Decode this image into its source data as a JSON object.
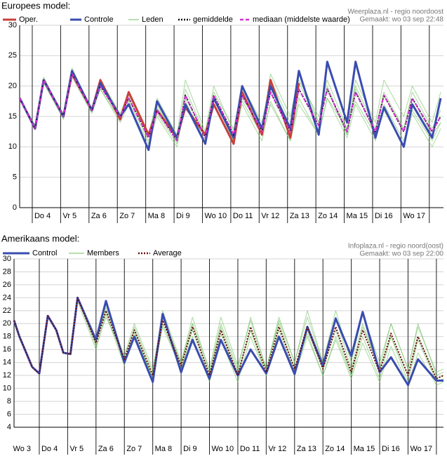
{
  "chart_data": [
    {
      "type": "line",
      "title": "Europees model:",
      "source": [
        "Weerplaza.nl - regio noordoost",
        "Gemaakt: wo 03 sep 22:48"
      ],
      "x": [
        3.56,
        4.1,
        4.4,
        5.1,
        5.4,
        6.1,
        6.4,
        7.1,
        7.4,
        8.1,
        8.4,
        9.1,
        9.4,
        10.1,
        10.4,
        11.1,
        11.4,
        12.1,
        12.4,
        13.1,
        13.4,
        14.1,
        14.4,
        15.1,
        15.4,
        16.1,
        16.4,
        17.1,
        17.4,
        18.1,
        18.4
      ],
      "xlim": [
        3.555,
        18.5
      ],
      "xticks": [
        {
          "value": 4,
          "label": "Do 4"
        },
        {
          "value": 5,
          "label": "Vr 5"
        },
        {
          "value": 6,
          "label": "Za 6"
        },
        {
          "value": 7,
          "label": "Zo 7"
        },
        {
          "value": 8,
          "label": "Ma 8"
        },
        {
          "value": 9,
          "label": "Di 9"
        },
        {
          "value": 10,
          "label": "Wo 10"
        },
        {
          "value": 11,
          "label": "Do 11"
        },
        {
          "value": 12,
          "label": "Vr 12"
        },
        {
          "value": 13,
          "label": "Za 13"
        },
        {
          "value": 14,
          "label": "Zo 14"
        },
        {
          "value": 15,
          "label": "Ma 15"
        },
        {
          "value": 16,
          "label": "Di 16"
        },
        {
          "value": 17,
          "label": "Wo 17"
        },
        {
          "value": 18,
          "label": ""
        }
      ],
      "ylim": [
        0,
        30
      ],
      "yticks": [
        0,
        5,
        10,
        15,
        20,
        25,
        30
      ],
      "grid": true,
      "members": {
        "name": "Leden",
        "color": "#6fbf5f",
        "series": [
          [
            18,
            13.5,
            21.5,
            15,
            22,
            16.5,
            21,
            15.5,
            19,
            12,
            17,
            11,
            19.5,
            12,
            19,
            13,
            20,
            14,
            21,
            14,
            21,
            15,
            21,
            13,
            20,
            13,
            19,
            13,
            19,
            13,
            16
          ],
          [
            18,
            13,
            20.5,
            14.5,
            21.5,
            15.5,
            19.5,
            14,
            17,
            10.5,
            15,
            10,
            17,
            10.5,
            17,
            11,
            17,
            11,
            17.5,
            11,
            18,
            12,
            18,
            11.5,
            17,
            11,
            17,
            11,
            16,
            11,
            14
          ],
          [
            18,
            13,
            21,
            15.5,
            23,
            16,
            20,
            15,
            18.5,
            12,
            18,
            12,
            21,
            12.5,
            20,
            12.5,
            19,
            13,
            22,
            15,
            22,
            14,
            20,
            12,
            21,
            14,
            21,
            15,
            20,
            14,
            19
          ],
          [
            18,
            13,
            21,
            15,
            22,
            16,
            19.5,
            14.5,
            17.5,
            11,
            15.5,
            10.5,
            17.5,
            11,
            18.5,
            12,
            17.5,
            12,
            17,
            11,
            17,
            12,
            18,
            13,
            17.5,
            12,
            16,
            10,
            15.5,
            10,
            13
          ],
          [
            18,
            13.5,
            21,
            15,
            22.5,
            16,
            20.5,
            15,
            18,
            12,
            16.5,
            11.5,
            18,
            12,
            18,
            11,
            18,
            13,
            19,
            13,
            20.5,
            14,
            19.5,
            12,
            19.5,
            12,
            18.5,
            13,
            18,
            12,
            14
          ]
        ]
      },
      "series": [
        {
          "name": "Oper.",
          "color": "#c8403a",
          "values": [
            18,
            13,
            21,
            15,
            22,
            16,
            21,
            14.5,
            19,
            12,
            16,
            11.5,
            16.5,
            12,
            17,
            10.5,
            19,
            12,
            21,
            11.5,
            20.5,
            null,
            null,
            null,
            null,
            null,
            null,
            null,
            null,
            null,
            null
          ]
        },
        {
          "name": "Controle",
          "color": "#3a4cb0",
          "values": [
            18,
            13,
            21,
            15,
            22.5,
            16,
            20.5,
            15,
            17,
            9.5,
            17.5,
            11.5,
            17,
            10.5,
            18,
            11.5,
            20,
            13,
            20,
            13,
            22.5,
            12,
            24,
            14,
            24,
            11.5,
            16.5,
            10,
            17,
            11.5,
            18
          ]
        },
        {
          "name": "gemiddelde",
          "color": "#000000",
          "dash": "dotted",
          "values": [
            18,
            13,
            21,
            15,
            22,
            16,
            20,
            15,
            18,
            11.5,
            16,
            11,
            18.5,
            11.5,
            18.5,
            12,
            18.5,
            12.5,
            19,
            12.5,
            19.5,
            13.5,
            19.5,
            12.5,
            19,
            12.5,
            18.5,
            12.5,
            18,
            12.5,
            15
          ]
        },
        {
          "name": "mediaan (middelste waarde)",
          "color": "#d030d0",
          "dash": "dashed",
          "values": [
            18,
            13,
            21,
            15,
            22,
            16,
            20,
            15,
            18,
            11.5,
            16,
            11,
            18.5,
            11.5,
            18.5,
            12,
            18.5,
            12.5,
            19,
            12.5,
            19.5,
            13.5,
            19.5,
            12.5,
            19,
            12.5,
            18.5,
            12.5,
            18,
            12.5,
            15
          ]
        }
      ]
    },
    {
      "type": "line",
      "title": "Amerikaans model:",
      "source": [
        "Infoplaza.nl - regio noord(oost)",
        "Gemaakt: wo 03 sep 22:00"
      ],
      "x": [
        3.11,
        3.3,
        3.75,
        4.0,
        4.3,
        4.6,
        4.85,
        5.1,
        5.35,
        6.0,
        6.35,
        7.0,
        7.35,
        8.0,
        8.35,
        9.0,
        9.4,
        10.0,
        10.4,
        11.0,
        11.45,
        12.0,
        12.45,
        13.0,
        13.45,
        14.0,
        14.45,
        15.0,
        15.4,
        16.0,
        16.4,
        17.0,
        17.35,
        18.0,
        18.25
      ],
      "xlim": [
        3.11,
        18.25
      ],
      "xticks": [
        {
          "value": 3,
          "label": "Wo 3"
        },
        {
          "value": 4,
          "label": "Do 4"
        },
        {
          "value": 5,
          "label": "Vr 5"
        },
        {
          "value": 6,
          "label": "Za 6"
        },
        {
          "value": 7,
          "label": "Zo 7"
        },
        {
          "value": 8,
          "label": "Ma 8"
        },
        {
          "value": 9,
          "label": "Di 9"
        },
        {
          "value": 10,
          "label": "Wo 10"
        },
        {
          "value": 11,
          "label": "Do 11"
        },
        {
          "value": 12,
          "label": "Vr 12"
        },
        {
          "value": 13,
          "label": "Za 13"
        },
        {
          "value": 14,
          "label": "Zo 14"
        },
        {
          "value": 15,
          "label": "Ma 15"
        },
        {
          "value": 16,
          "label": "Di 16"
        },
        {
          "value": 17,
          "label": "Wo 17"
        },
        {
          "value": 18,
          "label": ""
        }
      ],
      "ylim": [
        4,
        30
      ],
      "yticks": [
        4,
        6,
        8,
        10,
        12,
        14,
        16,
        18,
        20,
        22,
        24,
        26,
        28,
        30
      ],
      "grid": true,
      "members": {
        "name": "Members",
        "color": "#6fbf5f",
        "series": [
          [
            20.5,
            18,
            13.3,
            12.3,
            21.2,
            19,
            15.5,
            15.3,
            24,
            16.5,
            21,
            15,
            20,
            13,
            21,
            14,
            21,
            12.5,
            20,
            13,
            21,
            13,
            21,
            14,
            21,
            14,
            21,
            13,
            20,
            13,
            20,
            13,
            20,
            12,
            12.5
          ],
          [
            20.5,
            18,
            13.3,
            12.3,
            21.2,
            19,
            15.5,
            15.3,
            24,
            17.5,
            23,
            14,
            18.5,
            11.5,
            19.5,
            13,
            18,
            11,
            17.5,
            11,
            18,
            12,
            18,
            12,
            18,
            12,
            17.5,
            11.5,
            17,
            11,
            16.5,
            10.5,
            15.5,
            10.5,
            11
          ],
          [
            20.5,
            18,
            13.3,
            12.3,
            21.2,
            19,
            15.5,
            15.3,
            23.5,
            16,
            21.5,
            13.5,
            19.5,
            12.5,
            22,
            14,
            20,
            13,
            21,
            13.5,
            20.5,
            13,
            20.5,
            14,
            22,
            14,
            22,
            14,
            21.5,
            14,
            20,
            13,
            19.5,
            12.5,
            13
          ],
          [
            20.5,
            18,
            13.3,
            12.3,
            21.2,
            19,
            15.5,
            15.3,
            24,
            17,
            22.5,
            15,
            19,
            11.5,
            20,
            13,
            19,
            11.5,
            18.5,
            12,
            19,
            12,
            19,
            12.5,
            18.5,
            12,
            18,
            12,
            18,
            11.5,
            18,
            11,
            17.5,
            11,
            11.5
          ],
          [
            20.5,
            18,
            13.3,
            12.3,
            21.2,
            19,
            15.5,
            15.3,
            24,
            17,
            22,
            14,
            18,
            12,
            21,
            13.5,
            20,
            12,
            19.5,
            12.5,
            19,
            13,
            20,
            13,
            19,
            13,
            19,
            12,
            19.5,
            13,
            18,
            12,
            18,
            11.5,
            12
          ]
        ]
      },
      "series": [
        {
          "name": "Control",
          "color": "#3a4cb0",
          "values": [
            20.5,
            18,
            13.3,
            12.3,
            21.2,
            19,
            15.5,
            15.3,
            24,
            17.5,
            23.5,
            14,
            18,
            11,
            21.5,
            12.5,
            17.5,
            11.5,
            17.5,
            12,
            16,
            12.3,
            18,
            12.2,
            19.5,
            13.5,
            20.8,
            15,
            21.8,
            12.5,
            14.8,
            10.5,
            14.5,
            11.2,
            11.2
          ]
        },
        {
          "name": "Average",
          "color": "#6a0a0a",
          "dash": "dotted",
          "values": [
            20.5,
            18,
            13.3,
            12.3,
            21.2,
            19,
            15.5,
            15.3,
            24,
            17,
            22,
            14.5,
            19,
            12,
            20.5,
            13.5,
            19.5,
            12,
            19,
            12,
            19.5,
            12.5,
            19.5,
            13,
            19.5,
            13,
            19.5,
            12.5,
            19,
            12.5,
            18.5,
            12,
            18,
            11.5,
            12
          ]
        }
      ]
    }
  ]
}
